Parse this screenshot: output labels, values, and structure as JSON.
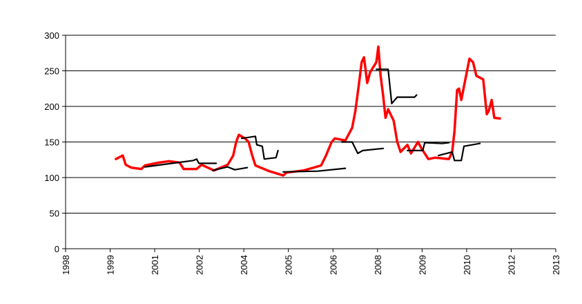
{
  "chart_data": {
    "type": "line",
    "xlim": [
      1998,
      2013
    ],
    "xticks": [
      {
        "value": 1998,
        "label": "1998"
      },
      {
        "value": 1999.364,
        "label": "1999"
      },
      {
        "value": 2000.727,
        "label": "2001"
      },
      {
        "value": 2002.091,
        "label": "2002"
      },
      {
        "value": 2003.455,
        "label": "2004"
      },
      {
        "value": 2004.818,
        "label": "2005"
      },
      {
        "value": 2006.182,
        "label": "2006"
      },
      {
        "value": 2007.545,
        "label": "2008"
      },
      {
        "value": 2008.909,
        "label": "2009"
      },
      {
        "value": 2010.273,
        "label": "2010"
      },
      {
        "value": 2011.636,
        "label": "2012"
      },
      {
        "value": 2013,
        "label": "2013"
      }
    ],
    "ylim": [
      0,
      300
    ],
    "yticks": [
      0,
      50,
      100,
      150,
      200,
      250,
      300
    ],
    "grid": true,
    "series": [
      {
        "color": "#ff0000",
        "x": [
          1999.54,
          1999.75,
          1999.84,
          2000.01,
          2000.32,
          2000.43,
          2000.85,
          2001.17,
          2001.49,
          2001.61,
          2002.01,
          2002.16,
          2002.54,
          2002.96,
          2003.13,
          2003.22,
          2003.3,
          2003.49,
          2003.6,
          2003.71,
          2003.81,
          2004.23,
          2004.66,
          2004.76,
          2005.29,
          2005.82,
          2005.97,
          2006.14,
          2006.24,
          2006.56,
          2006.77,
          2006.87,
          2006.98,
          2007.06,
          2007.13,
          2007.23,
          2007.32,
          2007.51,
          2007.57,
          2007.64,
          2007.72,
          2007.79,
          2007.87,
          2008.04,
          2008.15,
          2008.25,
          2008.46,
          2008.57,
          2008.78,
          2008.89,
          2009.1,
          2009.31,
          2009.73,
          2009.83,
          2009.9,
          2009.98,
          2010.04,
          2010.11,
          2010.19,
          2010.36,
          2010.47,
          2010.57,
          2010.78,
          2010.89,
          2010.95,
          2011.04,
          2011.12,
          2011.29
        ],
        "values": [
          126,
          131,
          118,
          114,
          112,
          117,
          121,
          123,
          121,
          112,
          112,
          118,
          110,
          118,
          131,
          150,
          160,
          155,
          150,
          131,
          117,
          109,
          103,
          107,
          110,
          117,
          131,
          150,
          155,
          152,
          170,
          194,
          233,
          262,
          269,
          233,
          248,
          262,
          284,
          243,
          214,
          184,
          196,
          180,
          150,
          136,
          146,
          134,
          150,
          141,
          126,
          128,
          126,
          136,
          165,
          223,
          225,
          209,
          228,
          267,
          262,
          243,
          238,
          189,
          194,
          209,
          184,
          183
        ]
      },
      {
        "color": "#000000",
        "x": [
          2000.43,
          2001.91,
          2002.01,
          2002.08,
          2002.61,
          null,
          2002.5,
          2002.96,
          2003.18,
          2003.56,
          null,
          2003.39,
          2003.81,
          2003.85,
          2004.02,
          2004.08,
          2004.44,
          2004.5,
          null,
          2004.66,
          2005.72,
          2006.56,
          null,
          2006.45,
          2006.77,
          2006.94,
          2007.09,
          2007.72,
          null,
          2007.51,
          2007.87,
          2007.98,
          2008.15,
          2008.68,
          2008.74,
          null,
          2008.46,
          2008.93,
          2008.99,
          2009.52,
          2009.73,
          null,
          2009.41,
          2009.83,
          2009.9,
          2010.11,
          2010.19,
          2010.68
        ],
        "values": [
          115,
          124,
          126,
          120,
          120,
          null,
          110,
          115,
          111,
          114,
          null,
          155,
          158,
          146,
          144,
          126,
          128,
          138,
          null,
          108,
          109,
          113,
          null,
          150,
          150,
          134,
          138,
          141,
          null,
          252,
          252,
          204,
          213,
          213,
          216,
          null,
          138,
          138,
          149,
          148,
          149,
          null,
          131,
          136,
          124,
          124,
          144,
          148
        ]
      }
    ]
  }
}
